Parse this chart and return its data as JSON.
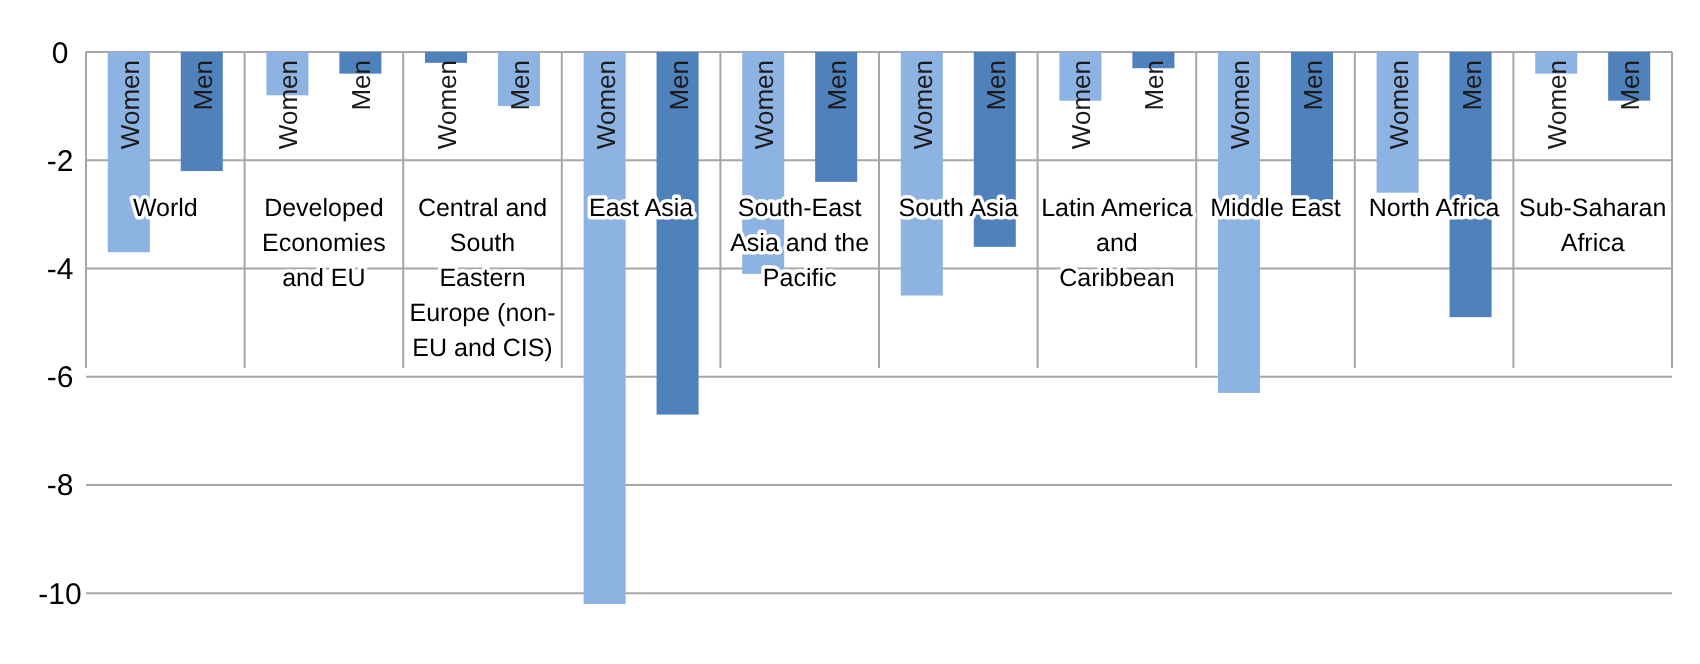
{
  "chart_data": {
    "type": "bar",
    "categories": [
      "World",
      "Developed Economies and EU",
      "Central and South Eastern Europe (non-EU and CIS)",
      "East Asia",
      "South-East Asia and the Pacific",
      "South Asia",
      "Latin America and Caribbean",
      "Middle East",
      "North Africa",
      "Sub-Saharan Africa"
    ],
    "series": [
      {
        "name": "Women",
        "colors": [
          "#8db3e2",
          "#8db3e2",
          "#4f81bd",
          "#8db3e2",
          "#8db3e2",
          "#8db3e2",
          "#8db3e2",
          "#8db3e2",
          "#8db3e2",
          "#8db3e2"
        ],
        "values": [
          -3.7,
          -0.8,
          -0.2,
          -10.2,
          -4.1,
          -4.5,
          -0.9,
          -6.3,
          -2.6,
          -0.4
        ]
      },
      {
        "name": "Men",
        "colors": [
          "#4f81bd",
          "#4f81bd",
          "#8db3e2",
          "#4f81bd",
          "#4f81bd",
          "#4f81bd",
          "#4f81bd",
          "#4f81bd",
          "#4f81bd",
          "#4f81bd"
        ],
        "values": [
          -2.2,
          -0.4,
          -1.0,
          -6.7,
          -2.4,
          -3.6,
          -0.3,
          -2.9,
          -4.9,
          -0.9
        ]
      }
    ],
    "ylim": [
      -10.2,
      0
    ],
    "yticks": [
      0,
      -2,
      -4,
      -6,
      -8,
      -10
    ],
    "grid": "y"
  }
}
